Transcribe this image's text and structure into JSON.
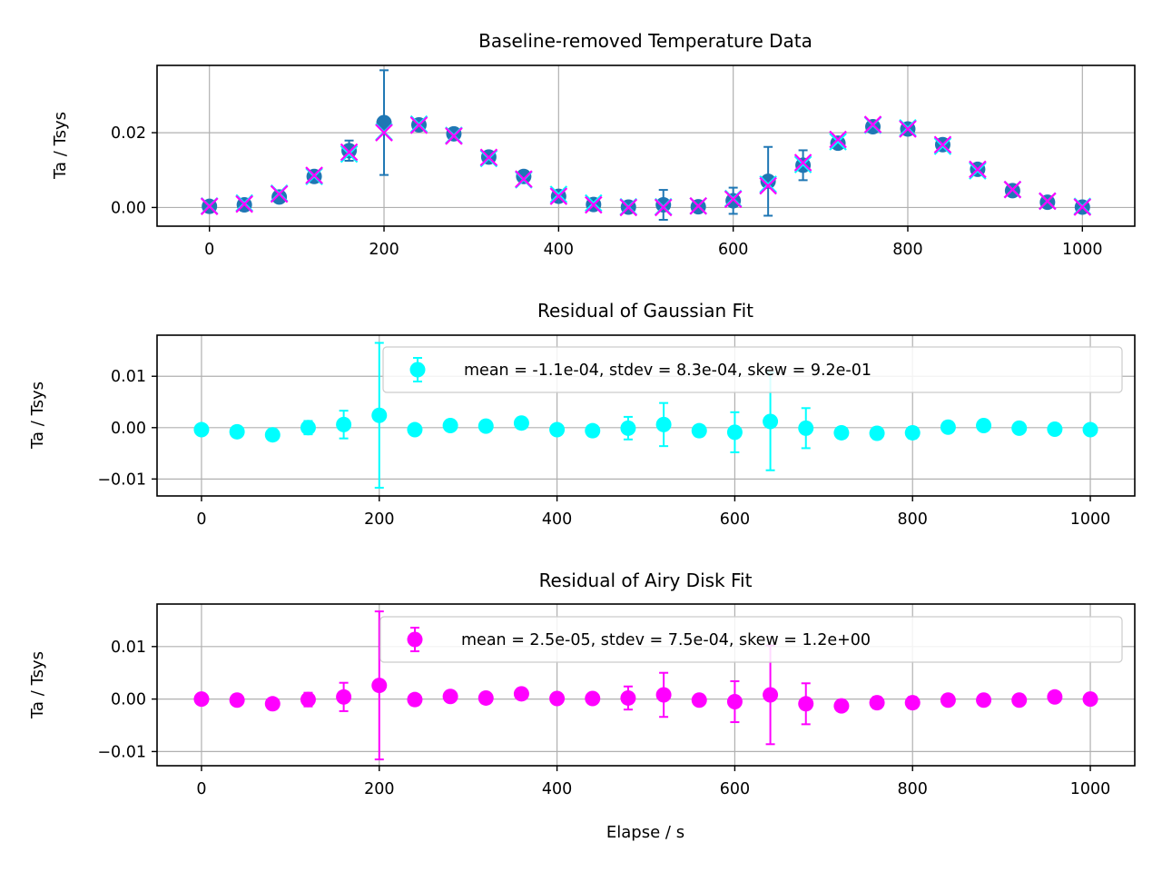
{
  "colors": {
    "data": "#1f77b4",
    "gaussian": "#00ffff",
    "airy": "#ff00ff",
    "grid": "#b0b0b0"
  },
  "chart_data": [
    {
      "type": "scatter",
      "title": "Baseline-removed Temperature Data",
      "xlabel": "",
      "ylabel": "Ta / Tsys",
      "xlim": [
        -60,
        1060
      ],
      "ylim": [
        -0.005,
        0.038
      ],
      "xticks": [
        0,
        200,
        400,
        600,
        800,
        1000
      ],
      "xtick_labels": [
        "0",
        "200",
        "400",
        "600",
        "800",
        "1000"
      ],
      "yticks": [
        0.0,
        0.02
      ],
      "ytick_labels": [
        "0.00",
        "0.02"
      ],
      "grid": true,
      "x": [
        0,
        40,
        80,
        120,
        160,
        200,
        240,
        280,
        320,
        360,
        400,
        440,
        480,
        520,
        560,
        600,
        640,
        680,
        720,
        760,
        800,
        840,
        880,
        920,
        960,
        1000
      ],
      "series": [
        {
          "color": "#1f77b4",
          "marker": "o",
          "values": [
            0.0003,
            0.0007,
            0.0028,
            0.0083,
            0.0152,
            0.0227,
            0.0221,
            0.0197,
            0.0135,
            0.0083,
            0.003,
            0.0008,
            0.0001,
            0.0007,
            0.0002,
            0.0018,
            0.007,
            0.0113,
            0.0172,
            0.0216,
            0.021,
            0.0168,
            0.0102,
            0.0045,
            0.0014,
            0.0001
          ],
          "errors": [
            0.0005,
            0.0015,
            0.001,
            0.0015,
            0.0027,
            0.014,
            0.001,
            0.001,
            0.001,
            0.001,
            0.001,
            0.001,
            0.0015,
            0.004,
            0.001,
            0.0035,
            0.0092,
            0.004,
            0.001,
            0.001,
            0.0015,
            0.001,
            0.001,
            0.001,
            0.001,
            0.001
          ]
        },
        {
          "color": "#00ffff",
          "marker": "x",
          "values": [
            0.0004,
            0.0012,
            0.0038,
            0.0083,
            0.0143,
            0.0202,
            0.0223,
            0.0193,
            0.0131,
            0.0074,
            0.0035,
            0.0012,
            0.0002,
            0.0002,
            0.0004,
            0.0024,
            0.0062,
            0.0115,
            0.0176,
            0.022,
            0.0213,
            0.0164,
            0.0098,
            0.0048,
            0.0017,
            0.0003
          ]
        },
        {
          "color": "#ff00ff",
          "marker": "x",
          "values": [
            0.0003,
            0.0009,
            0.0036,
            0.0086,
            0.0148,
            0.02,
            0.022,
            0.0191,
            0.0134,
            0.0076,
            0.003,
            0.0007,
            0.0,
            0.0,
            0.0004,
            0.0022,
            0.0058,
            0.012,
            0.0182,
            0.0222,
            0.021,
            0.0168,
            0.0102,
            0.0048,
            0.0017,
            0.0001
          ]
        }
      ]
    },
    {
      "type": "scatter",
      "title": "Residual of Gaussian Fit",
      "xlabel": "",
      "ylabel": "Ta / Tsys",
      "xlim": [
        -50,
        1050
      ],
      "ylim": [
        -0.0133,
        0.018
      ],
      "xticks": [
        0,
        200,
        400,
        600,
        800,
        1000
      ],
      "xtick_labels": [
        "0",
        "200",
        "400",
        "600",
        "800",
        "1000"
      ],
      "yticks": [
        -0.01,
        0.0,
        0.01
      ],
      "ytick_labels": [
        "−0.01",
        "0.00",
        "0.01"
      ],
      "grid": true,
      "legend": "upper-right",
      "x": [
        0,
        40,
        80,
        120,
        160,
        200,
        240,
        280,
        320,
        360,
        400,
        440,
        480,
        520,
        560,
        600,
        640,
        680,
        720,
        760,
        800,
        840,
        880,
        920,
        960,
        1000
      ],
      "series": [
        {
          "name": "mean = -1.1e-04, stdev = 8.3e-04, skew = 9.2e-01",
          "color": "#00ffff",
          "marker": "o",
          "values": [
            -0.0004,
            -0.0008,
            -0.0014,
            0.0,
            0.0006,
            0.0024,
            -0.0004,
            0.0004,
            0.0003,
            0.0009,
            -0.0004,
            -0.0006,
            -0.0001,
            0.0006,
            -0.0006,
            -0.0009,
            0.0012,
            -0.0001,
            -0.001,
            -0.0011,
            -0.001,
            0.0001,
            0.0004,
            -0.0001,
            -0.0003,
            -0.0004
          ],
          "errors": [
            0.0002,
            0.0002,
            0.0002,
            0.0013,
            0.0027,
            0.0141,
            0.0002,
            0.0002,
            0.0002,
            0.001,
            0.0002,
            0.0002,
            0.0022,
            0.0042,
            0.0002,
            0.0039,
            0.0095,
            0.0039,
            0.0002,
            0.0011,
            0.0011,
            0.0002,
            0.0002,
            0.0002,
            0.0002,
            0.0002
          ]
        }
      ]
    },
    {
      "type": "scatter",
      "title": "Residual of Airy Disk Fit",
      "xlabel": "Elapse / s",
      "ylabel": "Ta / Tsys",
      "xlim": [
        -50,
        1050
      ],
      "ylim": [
        -0.0127,
        0.0181
      ],
      "xticks": [
        0,
        200,
        400,
        600,
        800,
        1000
      ],
      "xtick_labels": [
        "0",
        "200",
        "400",
        "600",
        "800",
        "1000"
      ],
      "yticks": [
        -0.01,
        0.0,
        0.01
      ],
      "ytick_labels": [
        "−0.01",
        "0.00",
        "0.01"
      ],
      "grid": true,
      "legend": "upper-right",
      "x": [
        0,
        40,
        80,
        120,
        160,
        200,
        240,
        280,
        320,
        360,
        400,
        440,
        480,
        520,
        560,
        600,
        640,
        680,
        720,
        760,
        800,
        840,
        880,
        920,
        960,
        1000
      ],
      "series": [
        {
          "name": "mean = 2.5e-05, stdev = 7.5e-04, skew = 1.2e+00",
          "color": "#ff00ff",
          "marker": "o",
          "values": [
            0.0,
            -0.0002,
            -0.0009,
            -0.0001,
            0.0004,
            0.0026,
            -0.0001,
            0.0005,
            0.0002,
            0.001,
            0.0001,
            0.0001,
            0.0002,
            0.0008,
            -0.0002,
            -0.0005,
            0.0008,
            -0.0009,
            -0.0013,
            -0.0007,
            -0.0007,
            -0.0002,
            -0.0002,
            -0.0002,
            0.0004,
            0.0
          ],
          "errors": [
            0.0002,
            0.0002,
            0.0002,
            0.0013,
            0.0027,
            0.0141,
            0.0002,
            0.0002,
            0.0002,
            0.001,
            0.0002,
            0.0002,
            0.0022,
            0.0042,
            0.0002,
            0.0039,
            0.0094,
            0.0039,
            0.0002,
            0.0011,
            0.0011,
            0.0002,
            0.0002,
            0.0002,
            0.0002,
            0.0002
          ]
        }
      ]
    }
  ]
}
